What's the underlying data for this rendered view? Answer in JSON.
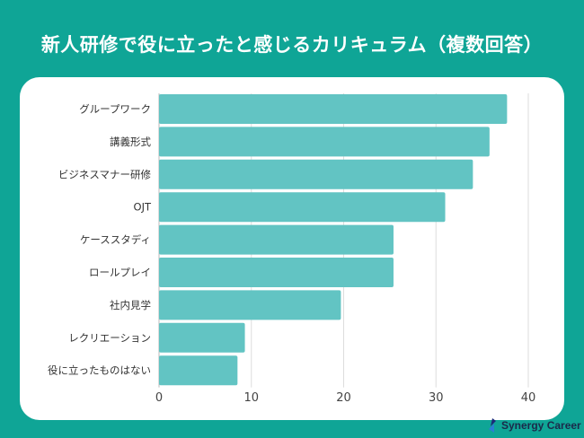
{
  "title": "新人研修で役に立ったと感じるカリキュラム（複数回答）",
  "brand": "Synergy Career",
  "colors": {
    "background": "#0fa596",
    "bar": "#62c4c3",
    "grid": "#dddddd"
  },
  "chart_data": {
    "type": "bar",
    "orientation": "horizontal",
    "title": "新人研修で役に立ったと感じるカリキュラム（複数回答）",
    "categories": [
      "グループワーク",
      "講義形式",
      "ビジネスマナー研修",
      "OJT",
      "ケーススタディ",
      "ロールプレイ",
      "社内見学",
      "レクリエーション",
      "役に立ったものはない"
    ],
    "values": [
      37.7,
      35.8,
      34.0,
      31.0,
      25.4,
      25.4,
      19.7,
      9.3,
      8.5
    ],
    "xlim": [
      0,
      40
    ],
    "xticks": [
      "0",
      "10",
      "20",
      "30",
      "40"
    ],
    "xlabel": "",
    "ylabel": "",
    "grid": true
  }
}
